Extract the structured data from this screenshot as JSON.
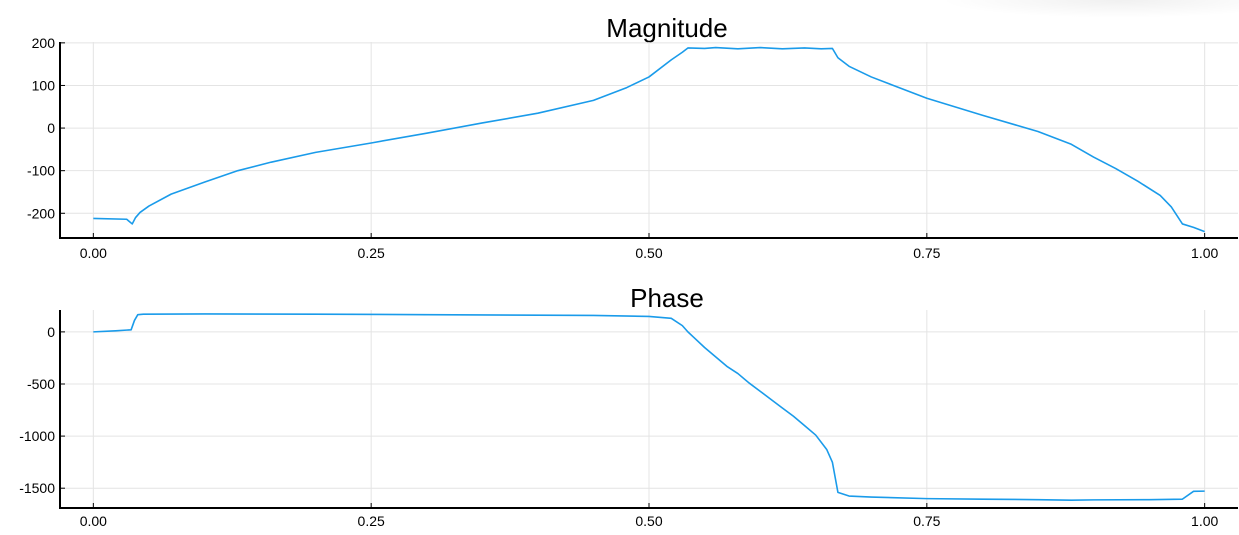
{
  "colors": {
    "line": "#1a9bea",
    "axis": "#000000",
    "grid": "#e4e4e4"
  },
  "chart_data": [
    {
      "type": "line",
      "title": "Magnitude",
      "xlabel": "",
      "ylabel": "",
      "xlim": [
        -0.03,
        1.03
      ],
      "ylim": [
        -258,
        202
      ],
      "xticks": [
        0,
        0.25,
        0.5,
        0.75,
        1
      ],
      "xtick_labels": [
        "0.00",
        "0.25",
        "0.50",
        "0.75",
        "1.00"
      ],
      "yticks": [
        200,
        100,
        0,
        -100,
        -200
      ],
      "ytick_labels": [
        "200",
        "100",
        "0",
        "-100",
        "-200"
      ],
      "grid": true,
      "series": [
        {
          "name": "Magnitude",
          "x": [
            0,
            0.03,
            0.035,
            0.038,
            0.042,
            0.05,
            0.07,
            0.1,
            0.13,
            0.16,
            0.2,
            0.25,
            0.3,
            0.35,
            0.4,
            0.45,
            0.48,
            0.5,
            0.52,
            0.53,
            0.535,
            0.55,
            0.56,
            0.58,
            0.6,
            0.62,
            0.64,
            0.655,
            0.665,
            0.67,
            0.68,
            0.7,
            0.72,
            0.75,
            0.8,
            0.85,
            0.88,
            0.9,
            0.92,
            0.94,
            0.96,
            0.97,
            0.98,
            0.99,
            1.0
          ],
          "values": [
            -212,
            -214,
            -225,
            -210,
            -198,
            -183,
            -155,
            -127,
            -100,
            -80,
            -57,
            -35,
            -12,
            12,
            35,
            65,
            95,
            120,
            160,
            178,
            188,
            187,
            189,
            186,
            189,
            186,
            188,
            186,
            187,
            165,
            145,
            120,
            100,
            70,
            30,
            -8,
            -38,
            -68,
            -95,
            -125,
            -158,
            -185,
            -225,
            -233,
            -243
          ]
        }
      ]
    },
    {
      "type": "line",
      "title": "Phase",
      "xlabel": "",
      "ylabel": "",
      "xlim": [
        -0.03,
        1.03
      ],
      "ylim": [
        -1690,
        210
      ],
      "xticks": [
        0,
        0.25,
        0.5,
        0.75,
        1
      ],
      "xtick_labels": [
        "0.00",
        "0.25",
        "0.50",
        "0.75",
        "1.00"
      ],
      "yticks": [
        0,
        -500,
        -1000,
        -1500
      ],
      "ytick_labels": [
        "0",
        "-500",
        "-1000",
        "-1500"
      ],
      "grid": true,
      "series": [
        {
          "name": "Phase",
          "x": [
            0,
            0.02,
            0.034,
            0.037,
            0.04,
            0.045,
            0.1,
            0.2,
            0.3,
            0.4,
            0.45,
            0.5,
            0.52,
            0.53,
            0.535,
            0.54,
            0.55,
            0.56,
            0.57,
            0.58,
            0.59,
            0.6,
            0.61,
            0.62,
            0.63,
            0.64,
            0.65,
            0.66,
            0.665,
            0.67,
            0.68,
            0.7,
            0.75,
            0.8,
            0.85,
            0.88,
            0.9,
            0.95,
            0.98,
            0.99,
            1.0
          ],
          "values": [
            0,
            10,
            20,
            110,
            165,
            170,
            172,
            170,
            165,
            160,
            158,
            148,
            130,
            60,
            0,
            -50,
            -150,
            -240,
            -330,
            -400,
            -490,
            -570,
            -650,
            -730,
            -810,
            -900,
            -990,
            -1130,
            -1250,
            -1540,
            -1575,
            -1585,
            -1600,
            -1605,
            -1610,
            -1615,
            -1612,
            -1610,
            -1605,
            -1530,
            -1528
          ]
        }
      ]
    }
  ]
}
